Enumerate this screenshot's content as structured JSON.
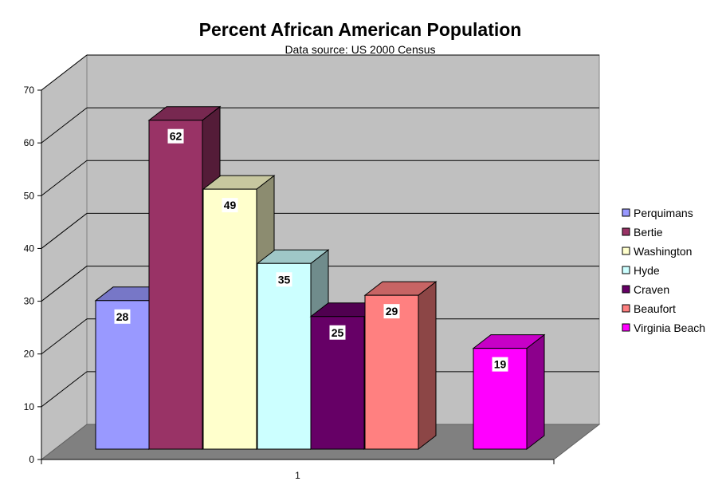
{
  "chart_data": {
    "type": "bar",
    "title": "Percent African American Population",
    "subtitle": "Data source: US 2000 Census",
    "xlabel": "",
    "ylabel": "",
    "categories": [
      "1"
    ],
    "ylim": [
      0,
      70
    ],
    "yticks": [
      "0",
      "10",
      "20",
      "30",
      "40",
      "50",
      "60",
      "70"
    ],
    "grid": true,
    "legend_position": "right",
    "three_d": true,
    "series": [
      {
        "name": "Perquimans",
        "values": [
          28
        ],
        "label": "28",
        "color": "#9999ff"
      },
      {
        "name": "Bertie",
        "values": [
          62
        ],
        "label": "62",
        "color": "#993366"
      },
      {
        "name": "Washington",
        "values": [
          49
        ],
        "label": "49",
        "color": "#ffffcc"
      },
      {
        "name": "Hyde",
        "values": [
          35
        ],
        "label": "35",
        "color": "#ccffff"
      },
      {
        "name": "Craven",
        "values": [
          25
        ],
        "label": "25",
        "color": "#660066"
      },
      {
        "name": "Beaufort",
        "values": [
          29
        ],
        "label": "29",
        "color": "#ff8080"
      },
      {
        "name": "Virginia Beach",
        "values": [
          19
        ],
        "label": "19",
        "color": "#ff00ff"
      }
    ]
  }
}
